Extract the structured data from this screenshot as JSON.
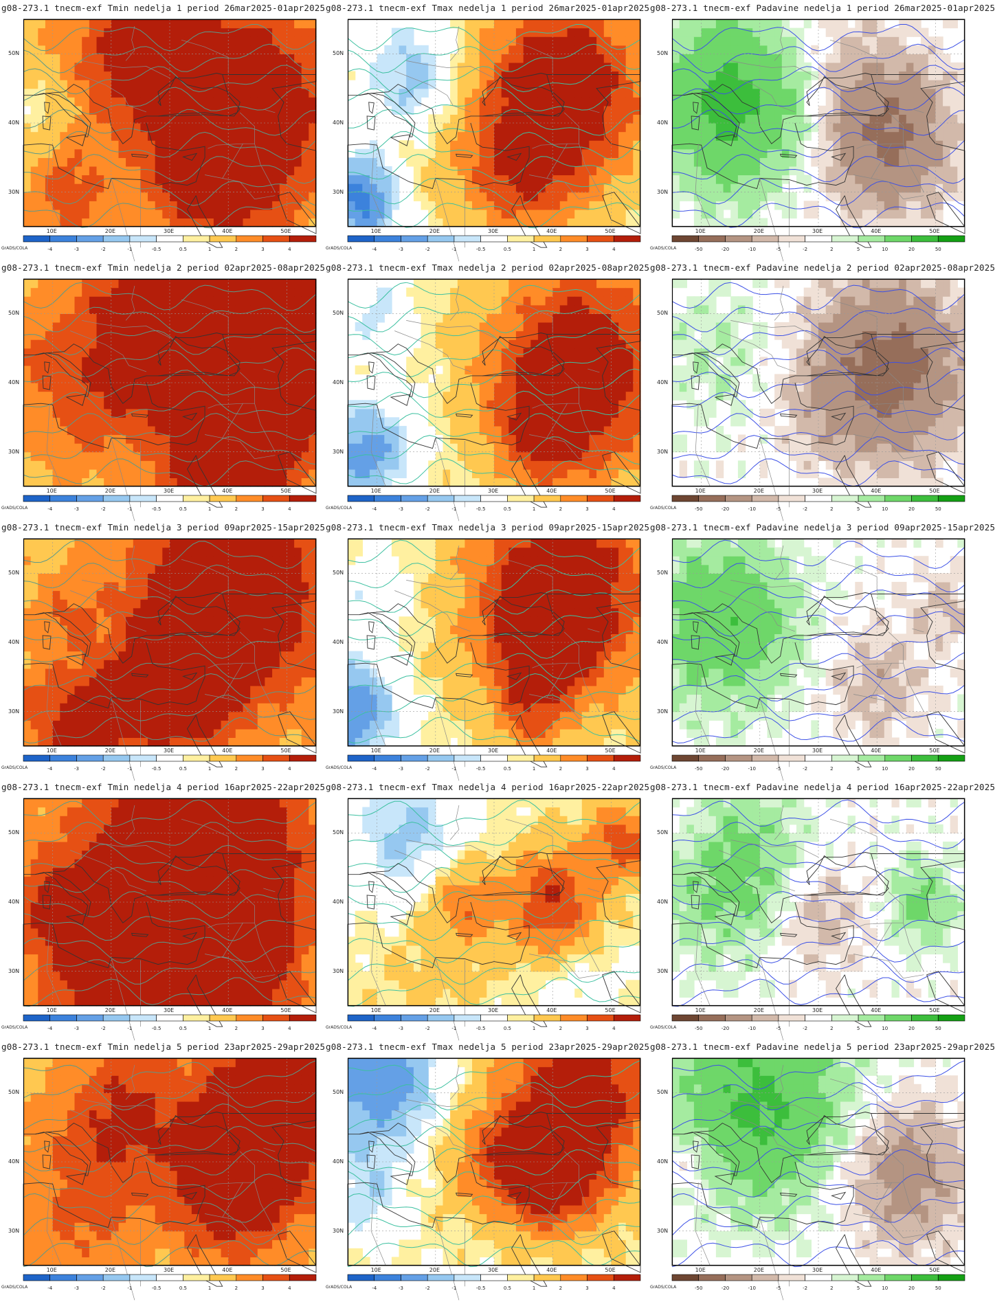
{
  "panels": [
    {
      "title": "g08-273.1 tnecm-exf Tmin nedelja 1 period 26mar2025-01apr2025",
      "variable": "Tmin",
      "week": 1
    },
    {
      "title": "g08-273.1 tnecm-exf Tmax nedelja 1 period 26mar2025-01apr2025",
      "variable": "Tmax",
      "week": 1
    },
    {
      "title": "g08-273.1 tnecm-exf Padavine nedelja 1 period 26mar2025-01apr2025",
      "variable": "Padavine",
      "week": 1
    },
    {
      "title": "g08-273.1 tnecm-exf Tmin nedelja 2 period 02apr2025-08apr2025",
      "variable": "Tmin",
      "week": 2
    },
    {
      "title": "g08-273.1 tnecm-exf Tmax nedelja 2 period 02apr2025-08apr2025",
      "variable": "Tmax",
      "week": 2
    },
    {
      "title": "g08-273.1 tnecm-exf Padavine nedelja 2 period 02apr2025-08apr2025",
      "variable": "Padavine",
      "week": 2
    },
    {
      "title": "g08-273.1 tnecm-exf Tmin nedelja 3 period 09apr2025-15apr2025",
      "variable": "Tmin",
      "week": 3
    },
    {
      "title": "g08-273.1 tnecm-exf Tmax nedelja 3 period 09apr2025-15apr2025",
      "variable": "Tmax",
      "week": 3
    },
    {
      "title": "g08-273.1 tnecm-exf Padavine nedelja 3 period 09apr2025-15apr2025",
      "variable": "Padavine",
      "week": 3
    },
    {
      "title": "g08-273.1 tnecm-exf Tmin nedelja 4 period 16apr2025-22apr2025",
      "variable": "Tmin",
      "week": 4
    },
    {
      "title": "g08-273.1 tnecm-exf Tmax nedelja 4 period 16apr2025-22apr2025",
      "variable": "Tmax",
      "week": 4
    },
    {
      "title": "g08-273.1 tnecm-exf Padavine nedelja 4 period 16apr2025-22apr2025",
      "variable": "Padavine",
      "week": 4
    },
    {
      "title": "g08-273.1 tnecm-exf Tmin nedelja 5 period 23apr2025-29apr2025",
      "variable": "Tmin",
      "week": 5
    },
    {
      "title": "g08-273.1 tnecm-exf Tmax nedelja 5 period 23apr2025-29apr2025",
      "variable": "Tmax",
      "week": 5
    },
    {
      "title": "g08-273.1 tnecm-exf Padavine nedelja 5 period 23apr2025-29apr2025",
      "variable": "Padavine",
      "week": 5
    }
  ],
  "map": {
    "lon_labels": [
      "10E",
      "20E",
      "30E",
      "40E",
      "50E"
    ],
    "lon_values": [
      10,
      20,
      30,
      40,
      50
    ],
    "lat_labels": [
      "50N",
      "40N",
      "30N"
    ],
    "lat_values": [
      50,
      40,
      30
    ],
    "lon_range": [
      5,
      55
    ],
    "lat_range": [
      25,
      55
    ]
  },
  "legend": {
    "credit": "GrADS/COLA",
    "temperature": {
      "labels": [
        "-4",
        "-3",
        "-2",
        "-1",
        "-0.5",
        "0.5",
        "1",
        "2",
        "3",
        "4"
      ],
      "colors": [
        "#1e64c8",
        "#3c82dc",
        "#64a0e6",
        "#96c8f0",
        "#c8e6fa",
        "#ffffff",
        "#fff0a0",
        "#ffc850",
        "#ff8c28",
        "#e65014",
        "#b41e0a"
      ]
    },
    "precipitation": {
      "labels": [
        "-50",
        "-20",
        "-10",
        "-5",
        "-2",
        "2",
        "5",
        "10",
        "20",
        "50"
      ],
      "colors": [
        "#6e4632",
        "#966e5a",
        "#b49482",
        "#d2b9aa",
        "#f0e1d7",
        "#ffffff",
        "#d7f5d2",
        "#a5eba0",
        "#6ed769",
        "#3cbe3c",
        "#14a014"
      ]
    }
  }
}
